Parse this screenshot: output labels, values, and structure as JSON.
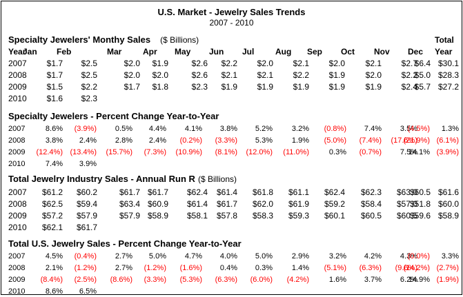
{
  "title": "U.S. Market - Jewelry Sales Trends",
  "subtitle": "2007 - 2010",
  "sections": [
    {
      "heading": "Specialty Jewelers' Monthy Sales",
      "unit": "($ Billions)",
      "header_top": "Total",
      "header": [
        "Year",
        "Jan",
        "Feb",
        "Mar",
        "Apr",
        "May",
        "Jun",
        "Jul",
        "Aug",
        "Sep",
        "Oct",
        "Nov",
        "Dec",
        "Year"
      ],
      "rows": [
        [
          "2007",
          "$1.7",
          "$2.5",
          "$2.0",
          "$1.9",
          "$2.6",
          "$2.2",
          "$2.0",
          "$2.1",
          "$2.0",
          "$2.1",
          "$2.7",
          "$6.4",
          "$30.1"
        ],
        [
          "2008",
          "$1.7",
          "$2.5",
          "$2.0",
          "$2.0",
          "$2.6",
          "$2.1",
          "$2.1",
          "$2.2",
          "$1.9",
          "$2.0",
          "$2.2",
          "$5.0",
          "$28.3"
        ],
        [
          "2009",
          "$1.5",
          "$2.2",
          "$1.7",
          "$1.8",
          "$2.3",
          "$1.9",
          "$1.9",
          "$1.9",
          "$1.9",
          "$1.9",
          "$2.4",
          "$5.7",
          "$27.2"
        ],
        [
          "2010",
          "$1.6",
          "$2.3",
          "",
          "",
          "",
          "",
          "",
          "",
          "",
          "",
          "",
          "",
          ""
        ]
      ]
    },
    {
      "heading": "Specialty Jewelers - Percent Change Year-to-Year",
      "rows": [
        [
          "2007",
          "8.6%",
          "(3.9%)",
          "0.5%",
          "4.4%",
          "4.1%",
          "3.8%",
          "5.2%",
          "3.2%",
          "(0.8%)",
          "7.4%",
          "3.5%",
          "(4.5%)",
          "1.3%"
        ],
        [
          "2008",
          "3.8%",
          "2.4%",
          "2.8%",
          "2.4%",
          "(0.2%)",
          "(3.3%)",
          "5.3%",
          "1.9%",
          "(5.0%)",
          "(7.4%)",
          "(17.6%)",
          "(21.9%)",
          "(6.1%)"
        ],
        [
          "2009",
          "(12.4%)",
          "(13.4%)",
          "(15.7%)",
          "(7.3%)",
          "(10.9%)",
          "(8.1%)",
          "(12.0%)",
          "(11.0%)",
          "0.3%",
          "(0.7%)",
          "7.5%",
          "14.1%",
          "(3.9%)"
        ],
        [
          "2010",
          "7.4%",
          "3.9%",
          "",
          "",
          "",
          "",
          "",
          "",
          "",
          "",
          "",
          "",
          ""
        ]
      ]
    },
    {
      "heading": "Total Jewelry Industry Sales - Annual Run R",
      "unit": "($ Billions)",
      "rows": [
        [
          "2007",
          "$61.2",
          "$60.2",
          "$61.7",
          "$61.7",
          "$62.4",
          "$61.4",
          "$61.8",
          "$61.1",
          "$62.4",
          "$62.3",
          "$63.0",
          "$60.5",
          "$61.6"
        ],
        [
          "2008",
          "$62.5",
          "$59.4",
          "$63.4",
          "$60.9",
          "$61.4",
          "$61.7",
          "$62.0",
          "$61.9",
          "$59.2",
          "$58.4",
          "$57.0",
          "$51.8",
          "$60.0"
        ],
        [
          "2009",
          "$57.2",
          "$57.9",
          "$57.9",
          "$58.9",
          "$58.1",
          "$57.8",
          "$58.3",
          "$59.3",
          "$60.1",
          "$60.5",
          "$60.5",
          "$59.6",
          "$58.9"
        ],
        [
          "2010",
          "$62.1",
          "$61.7",
          "",
          "",
          "",
          "",
          "",
          "",
          "",
          "",
          "",
          "",
          ""
        ]
      ]
    },
    {
      "heading": "Total U.S. Jewelry Sales - Percent Change Year-to-Year",
      "rows": [
        [
          "2007",
          "4.5%",
          "(0.4%)",
          "2.7%",
          "5.0%",
          "4.7%",
          "4.0%",
          "5.0%",
          "2.9%",
          "3.2%",
          "4.2%",
          "4.3%",
          "(0.0%)",
          "3.3%"
        ],
        [
          "2008",
          "2.1%",
          "(1.2%)",
          "2.7%",
          "(1.2%)",
          "(1.6%)",
          "0.4%",
          "0.3%",
          "1.4%",
          "(5.1%)",
          "(6.3%)",
          "(9.6%)",
          "(14.2%)",
          "(2.7%)"
        ],
        [
          "2009",
          "(8.4%)",
          "(2.5%)",
          "(8.6%)",
          "(3.3%)",
          "(5.3%)",
          "(6.3%)",
          "(6.0%)",
          "(4.2%)",
          "1.6%",
          "3.7%",
          "6.2%",
          "14.9%",
          "(1.9%)"
        ],
        [
          "2010",
          "8.6%",
          "6.5%",
          "",
          "",
          "",
          "",
          "",
          "",
          "",
          "",
          "",
          "",
          ""
        ]
      ]
    }
  ],
  "colors": {
    "negative": "#ff0000",
    "text": "#000000",
    "border": "#000000"
  }
}
